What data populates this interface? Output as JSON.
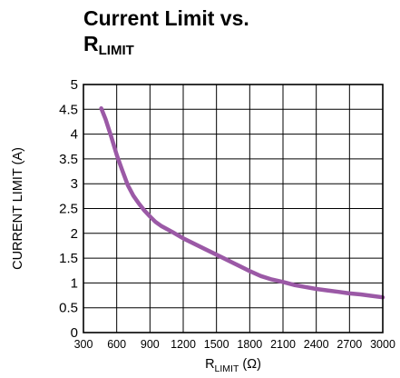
{
  "chart_data": {
    "type": "line",
    "title_main": "Current Limit vs.",
    "title_var": "R",
    "title_var_sub": "LIMIT",
    "xlabel_var": "R",
    "xlabel_var_sub": "LIMIT",
    "xlabel_unit": " (Ω)",
    "ylabel": "CURRENT LIMIT (A)",
    "xlim": [
      300,
      3000
    ],
    "ylim": [
      0,
      5
    ],
    "x_ticks": [
      300,
      600,
      900,
      1200,
      1500,
      1800,
      2100,
      2400,
      2700,
      3000
    ],
    "x_tick_labels": [
      "300",
      "600",
      "900",
      "1200",
      "1500",
      "1800",
      "2100",
      "2400",
      "2700",
      "3000"
    ],
    "y_ticks": [
      0,
      0.5,
      1,
      1.5,
      2,
      2.5,
      3,
      3.5,
      4,
      4.5,
      5
    ],
    "y_tick_labels": [
      "0",
      "0.5",
      "1",
      "1.5",
      "2",
      "2.5",
      "3",
      "3.5",
      "4",
      "4.5",
      "5"
    ],
    "grid": true,
    "line_color": "#9b59a6",
    "series": [
      {
        "x": [
          460,
          500,
          550,
          600,
          650,
          700,
          750,
          800,
          850,
          900,
          950,
          1000,
          1100,
          1200,
          1300,
          1400,
          1500,
          1600,
          1700,
          1800,
          1900,
          2000,
          2100,
          2200,
          2300,
          2400,
          2500,
          2600,
          2700,
          2800,
          2900,
          3000
        ],
        "y": [
          4.52,
          4.3,
          3.95,
          3.58,
          3.27,
          2.97,
          2.76,
          2.6,
          2.46,
          2.34,
          2.23,
          2.15,
          2.03,
          1.9,
          1.79,
          1.68,
          1.57,
          1.46,
          1.35,
          1.24,
          1.14,
          1.07,
          1.02,
          0.96,
          0.92,
          0.88,
          0.85,
          0.82,
          0.79,
          0.77,
          0.74,
          0.71
        ]
      }
    ]
  }
}
